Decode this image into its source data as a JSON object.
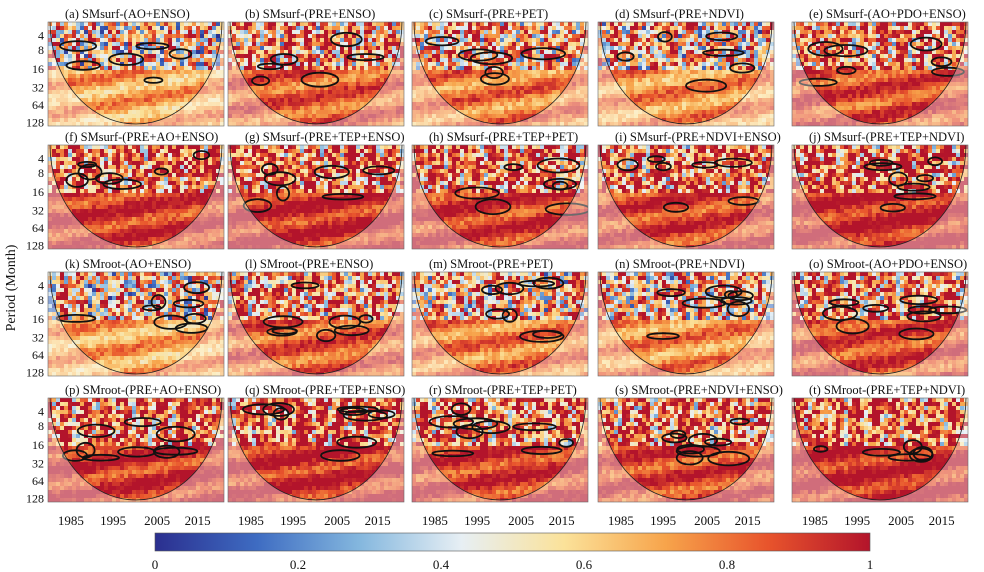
{
  "figure": {
    "y_axis_label": "Period (Month)",
    "y_ticks": [
      "4",
      "8",
      "16",
      "32",
      "64",
      "128"
    ],
    "x_ticks": [
      "1985",
      "1995",
      "2005",
      "2015"
    ],
    "colorbar_ticks": [
      "0",
      "0.2",
      "0.4",
      "0.6",
      "0.8",
      "1"
    ]
  },
  "colors": {
    "colormap": [
      "#2b2f8f",
      "#3e6cc2",
      "#84b7de",
      "#e7eff4",
      "#fbe29a",
      "#f7a44b",
      "#e8542c",
      "#b3142b"
    ],
    "contour": "#111111",
    "coi_shade": "#ffffff",
    "coi_line": "#222222"
  },
  "chart_data": {
    "type": "heatmap",
    "description_of_axes": {
      "x": {
        "label": "",
        "range": [
          1980,
          2020
        ],
        "ticks": [
          1985,
          1995,
          2005,
          2015
        ]
      },
      "y": {
        "label": "Period (Month)",
        "scale": "log2",
        "range": [
          2,
          150
        ],
        "reversed": true,
        "ticks": [
          4,
          8,
          16,
          32,
          64,
          128
        ]
      },
      "color": {
        "range": [
          0,
          1
        ],
        "ticks": [
          0,
          0.2,
          0.4,
          0.6,
          0.8,
          1
        ]
      }
    },
    "panels": [
      {
        "label": "(a) SMsurf-(AO+ENSO)",
        "mean_coherence": 0.58
      },
      {
        "label": "(b) SMsurf-(PRE+ENSO)",
        "mean_coherence": 0.72
      },
      {
        "label": "(c) SMsurf-(PRE+PET)",
        "mean_coherence": 0.66
      },
      {
        "label": "(d) SMsurf-(PRE+NDVI)",
        "mean_coherence": 0.62
      },
      {
        "label": "(e) SMsurf-(AO+PDO+ENSO)",
        "mean_coherence": 0.76
      },
      {
        "label": "(f) SMsurf-(PRE+AO+ENSO)",
        "mean_coherence": 0.8
      },
      {
        "label": "(g) SMsurf-(PRE+TEP+ENSO)",
        "mean_coherence": 0.82
      },
      {
        "label": "(h) SMsurf-(PRE+TEP+PET)",
        "mean_coherence": 0.8
      },
      {
        "label": "(i) SMsurf-(PRE+NDVI+ENSO)",
        "mean_coherence": 0.78
      },
      {
        "label": "(j) SMsurf-(PRE+TEP+NDVI)",
        "mean_coherence": 0.83
      },
      {
        "label": "(k) SMroot-(AO+ENSO)",
        "mean_coherence": 0.58
      },
      {
        "label": "(l) SMroot-(PRE+ENSO)",
        "mean_coherence": 0.72
      },
      {
        "label": "(m) SMroot-(PRE+PET)",
        "mean_coherence": 0.66
      },
      {
        "label": "(n) SMroot-(PRE+NDVI)",
        "mean_coherence": 0.63
      },
      {
        "label": "(o) SMroot-(AO+PDO+ENSO)",
        "mean_coherence": 0.76
      },
      {
        "label": "(p) SMroot-(PRE+AO+ENSO)",
        "mean_coherence": 0.81
      },
      {
        "label": "(q) SMroot-(PRE+TEP+ENSO)",
        "mean_coherence": 0.82
      },
      {
        "label": "(r) SMroot-(PRE+TEP+PET)",
        "mean_coherence": 0.8
      },
      {
        "label": "(s) SMroot-(PRE+NDVI+ENSO)",
        "mean_coherence": 0.78
      },
      {
        "label": "(t) SMroot-(PRE+TEP+NDVI)",
        "mean_coherence": 0.83
      }
    ]
  }
}
